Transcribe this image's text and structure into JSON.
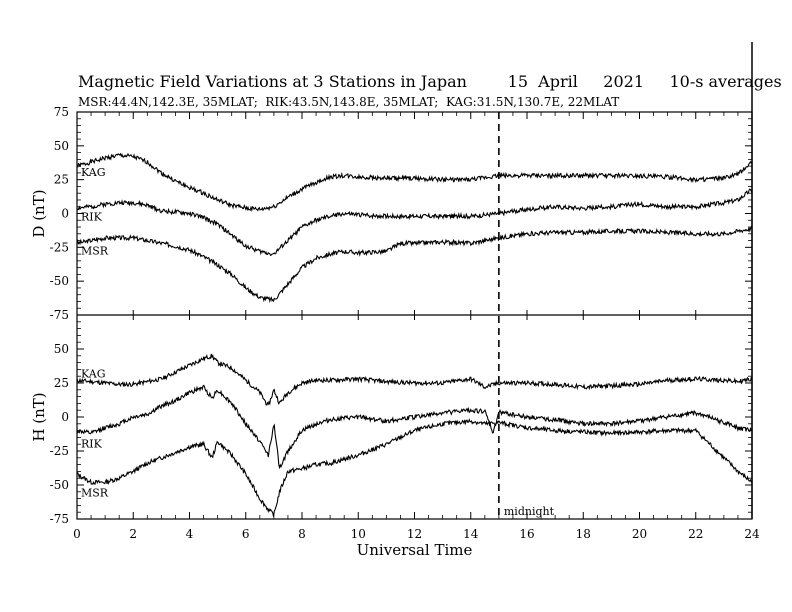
{
  "header": {
    "title": "Magnetic Field Variations at 3 Stations in Japan",
    "date": "15  April",
    "year": "2021",
    "averaging": "10-s averages",
    "stations_line": "MSR:44.4N,142.3E, 35MLAT;  RIK:43.5N,143.8E, 35MLAT;  KAG:31.5N,130.7E, 22MLAT"
  },
  "chart_data": [
    {
      "type": "line",
      "panel": "top",
      "ylabel": "D (nT)",
      "ylim": [
        -75,
        75
      ],
      "yticks": [
        "75",
        "50",
        "25",
        "0",
        "-25",
        "-50",
        "-75"
      ],
      "xlim": [
        0,
        24
      ],
      "series": [
        {
          "name": "KAG",
          "x": [
            0,
            0.5,
            1,
            1.5,
            2,
            2.5,
            3,
            3.5,
            4,
            4.5,
            5,
            5.5,
            6,
            6.5,
            7,
            7.5,
            8,
            8.5,
            9,
            9.5,
            10,
            11,
            12,
            13,
            14,
            15,
            16,
            17,
            18,
            19,
            20,
            21,
            22,
            23,
            23.5,
            24
          ],
          "y": [
            35,
            38,
            41,
            43,
            42,
            38,
            30,
            24,
            19,
            15,
            10,
            6,
            4,
            3,
            5,
            12,
            18,
            23,
            27,
            28,
            27,
            26,
            26,
            25,
            25,
            28,
            28,
            28,
            28,
            28,
            28,
            27,
            25,
            26,
            29,
            38
          ]
        },
        {
          "name": "RIK",
          "x": [
            0,
            0.5,
            1,
            1.5,
            2,
            2.5,
            3,
            3.5,
            4,
            4.5,
            5,
            5.5,
            6,
            6.5,
            7,
            7.5,
            8,
            8.5,
            9,
            9.5,
            10,
            11,
            12,
            13,
            14,
            15,
            16,
            17,
            18,
            19,
            20,
            21,
            22,
            23,
            23.5,
            24
          ],
          "y": [
            4,
            5,
            7,
            8,
            8,
            6,
            2,
            1,
            0,
            -3,
            -8,
            -16,
            -24,
            -28,
            -30,
            -20,
            -10,
            -5,
            -2,
            0,
            -1,
            -2,
            -2,
            -2,
            -2,
            0,
            3,
            5,
            4,
            5,
            7,
            5,
            5,
            8,
            10,
            18
          ]
        },
        {
          "name": "MSR",
          "x": [
            0,
            0.5,
            1,
            1.5,
            2,
            2.5,
            3,
            3.5,
            4,
            4.5,
            5,
            5.5,
            6,
            6.5,
            7,
            7.5,
            8,
            8.5,
            9,
            9.5,
            10,
            11,
            11.5,
            12,
            13,
            14,
            15,
            16,
            17,
            18,
            19,
            20,
            21,
            22,
            23,
            23.5,
            24
          ],
          "y": [
            -22,
            -20,
            -18,
            -18,
            -18,
            -20,
            -22,
            -24,
            -27,
            -32,
            -38,
            -45,
            -55,
            -62,
            -64,
            -52,
            -40,
            -33,
            -30,
            -28,
            -29,
            -28,
            -22,
            -22,
            -21,
            -22,
            -18,
            -15,
            -14,
            -14,
            -13,
            -13,
            -14,
            -15,
            -15,
            -13,
            -11
          ]
        }
      ]
    },
    {
      "type": "line",
      "panel": "bottom",
      "ylabel": "H (nT)",
      "ylim": [
        -75,
        75
      ],
      "yticks": [
        "75",
        "50",
        "25",
        "0",
        "-25",
        "-50",
        "-75"
      ],
      "xlabel": "Universal Time",
      "xlim": [
        0,
        24
      ],
      "xticks": [
        "0",
        "2",
        "4",
        "6",
        "8",
        "10",
        "12",
        "14",
        "16",
        "18",
        "20",
        "22",
        "24"
      ],
      "series": [
        {
          "name": "KAG",
          "x": [
            0,
            0.5,
            1,
            1.5,
            2,
            2.5,
            3,
            3.5,
            4,
            4.5,
            4.8,
            5,
            5.5,
            6,
            6.5,
            6.8,
            7,
            7.2,
            7.5,
            8,
            8.5,
            9,
            10,
            11,
            12,
            13,
            14,
            14.5,
            15,
            16,
            17,
            18,
            19,
            20,
            21,
            22,
            23,
            23.5,
            24
          ],
          "y": [
            27,
            26,
            25,
            24,
            24,
            26,
            28,
            33,
            38,
            43,
            45,
            40,
            36,
            27,
            18,
            8,
            20,
            10,
            18,
            25,
            27,
            27,
            28,
            26,
            25,
            25,
            28,
            22,
            25,
            25,
            24,
            22,
            23,
            24,
            27,
            28,
            27,
            26,
            28
          ]
        },
        {
          "name": "RIK",
          "x": [
            0,
            0.5,
            1,
            1.5,
            2,
            2.5,
            3,
            3.5,
            4,
            4.5,
            4.8,
            5,
            5.5,
            6,
            6.5,
            6.8,
            7,
            7.2,
            7.5,
            8,
            8.5,
            9,
            10,
            11,
            12,
            13,
            14,
            14.5,
            14.8,
            15,
            15.2,
            16,
            17,
            18,
            19,
            20,
            21,
            22,
            23,
            23.5,
            24
          ],
          "y": [
            -10,
            -12,
            -8,
            -5,
            0,
            2,
            8,
            12,
            18,
            22,
            14,
            20,
            10,
            -5,
            -18,
            -28,
            -5,
            -38,
            -25,
            -10,
            -5,
            -2,
            0,
            -3,
            0,
            3,
            5,
            4,
            -12,
            4,
            3,
            0,
            -2,
            -5,
            -5,
            -3,
            0,
            3,
            -4,
            -8,
            -10
          ]
        },
        {
          "name": "MSR",
          "x": [
            0,
            0.5,
            1,
            1.5,
            2,
            2.5,
            3,
            3.5,
            4,
            4.5,
            4.8,
            5,
            5.5,
            6,
            6.5,
            6.8,
            7,
            7.2,
            7.5,
            8,
            8.5,
            9,
            10,
            11,
            12,
            13,
            14,
            14.5,
            15,
            16,
            17,
            18,
            19,
            20,
            21,
            22,
            23,
            23.5,
            24
          ],
          "y": [
            -42,
            -48,
            -48,
            -45,
            -40,
            -34,
            -30,
            -26,
            -22,
            -20,
            -30,
            -18,
            -28,
            -42,
            -60,
            -68,
            -72,
            -55,
            -40,
            -38,
            -35,
            -34,
            -28,
            -20,
            -10,
            -5,
            -3,
            -5,
            -4,
            -8,
            -10,
            -11,
            -12,
            -11,
            -10,
            -10,
            -30,
            -40,
            -48
          ]
        }
      ]
    }
  ],
  "annotations": {
    "midnight_label": "midnight",
    "midnight_x": 15
  }
}
